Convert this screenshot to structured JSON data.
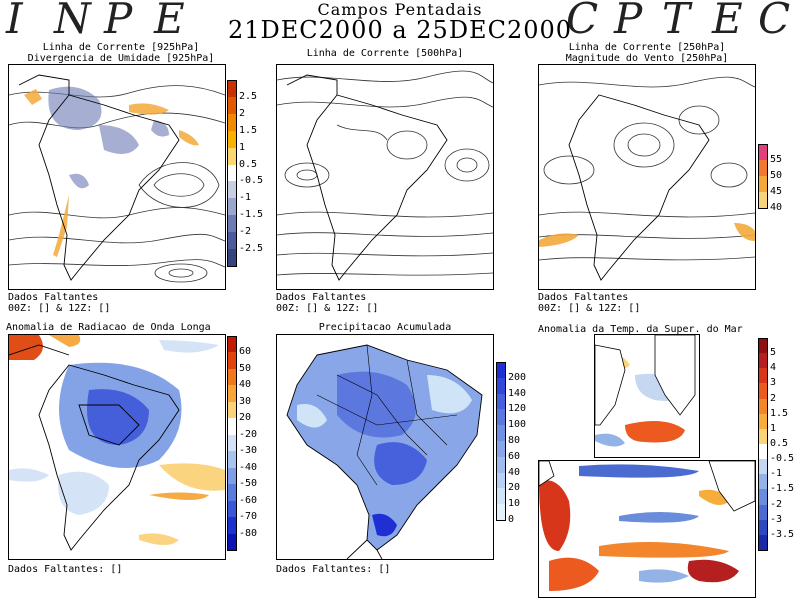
{
  "header": {
    "left_letters": [
      "I",
      "N",
      "P",
      "E"
    ],
    "right_letters": [
      "C",
      "P",
      "T",
      "E",
      "C"
    ],
    "title_line1": "Campos Pentadais",
    "title_line2": "21DEC2000 a 25DEC2000"
  },
  "panels": {
    "p1": {
      "title": [
        "Linha de Corrente [925hPa]",
        "Divergencia de Umidade [925hPa]"
      ],
      "notes": [
        "Dados Faltantes",
        "00Z: [] & 12Z: []"
      ],
      "colorbar": {
        "labels": [
          "2.5",
          "2",
          "1.5",
          "1",
          "0.5",
          "-0.5",
          "-1",
          "-1.5",
          "-2",
          "-2.5"
        ],
        "colors": [
          "#c83200",
          "#e35a00",
          "#f08a00",
          "#f6b400",
          "#fbd770",
          "#ffffff",
          "#c9cfe3",
          "#9aa6cc",
          "#6c7bb4",
          "#4b5b9b",
          "#35437f"
        ]
      }
    },
    "p2": {
      "title": [
        "Linha de Corrente [500hPa]"
      ],
      "notes": [
        "Dados Faltantes",
        "00Z: [] & 12Z: []"
      ]
    },
    "p3": {
      "title": [
        "Linha de Corrente [250hPa]",
        "Magnitude do Vento [250hPa]"
      ],
      "notes": [
        "Dados Faltantes",
        "00Z: [] & 12Z: []"
      ],
      "colorbar": {
        "labels": [
          "55",
          "50",
          "45",
          "40"
        ],
        "colors": [
          "#e0407e",
          "#f07830",
          "#f3a93a",
          "#f7d37c"
        ]
      }
    },
    "p4": {
      "title": [
        "Anomalia de Radiacao de Onda Longa"
      ],
      "notes": [
        "Dados Faltantes: []"
      ],
      "colorbar": {
        "labels": [
          "60",
          "50",
          "40",
          "30",
          "20",
          "-20",
          "-30",
          "-40",
          "-50",
          "-60",
          "-70",
          "-80"
        ],
        "colors": [
          "#c01d00",
          "#e0440a",
          "#f07a1a",
          "#f6a63a",
          "#fbd27a",
          "#ffffff",
          "#d3e2f6",
          "#a9c3ef",
          "#7e9fe6",
          "#5a7be0",
          "#3a57d8",
          "#1d32cc",
          "#0a14b4"
        ]
      }
    },
    "p5": {
      "title": [
        "Precipitacao Acumulada"
      ],
      "notes": [
        "Dados Faltantes: []"
      ],
      "colorbar": {
        "labels": [
          "200",
          "140",
          "120",
          "100",
          "80",
          "60",
          "40",
          "20",
          "10",
          "0"
        ],
        "colors": [
          "#1f2fd1",
          "#3347d9",
          "#4760dc",
          "#5c78df",
          "#7290e3",
          "#89a6e8",
          "#a0bced",
          "#b8d1f2",
          "#d0e4f7",
          "#e6f2fb"
        ]
      }
    },
    "p6": {
      "title": [
        "Anomalia da Temp. da Super. do Mar"
      ],
      "colorbar": {
        "labels": [
          "5",
          "4",
          "3",
          "2",
          "1.5",
          "1",
          "0.5",
          "-0.5",
          "-1",
          "-1.5",
          "-2",
          "-3",
          "-3.5"
        ],
        "colors": [
          "#8e1010",
          "#b51f1f",
          "#d8361a",
          "#ec5a20",
          "#f3852c",
          "#f6ad3c",
          "#fbd47a",
          "#ffffff",
          "#c6d7f1",
          "#93b2e6",
          "#6a8ddb",
          "#4a6bd0",
          "#2d49c2",
          "#1a2aa8"
        ]
      }
    }
  }
}
